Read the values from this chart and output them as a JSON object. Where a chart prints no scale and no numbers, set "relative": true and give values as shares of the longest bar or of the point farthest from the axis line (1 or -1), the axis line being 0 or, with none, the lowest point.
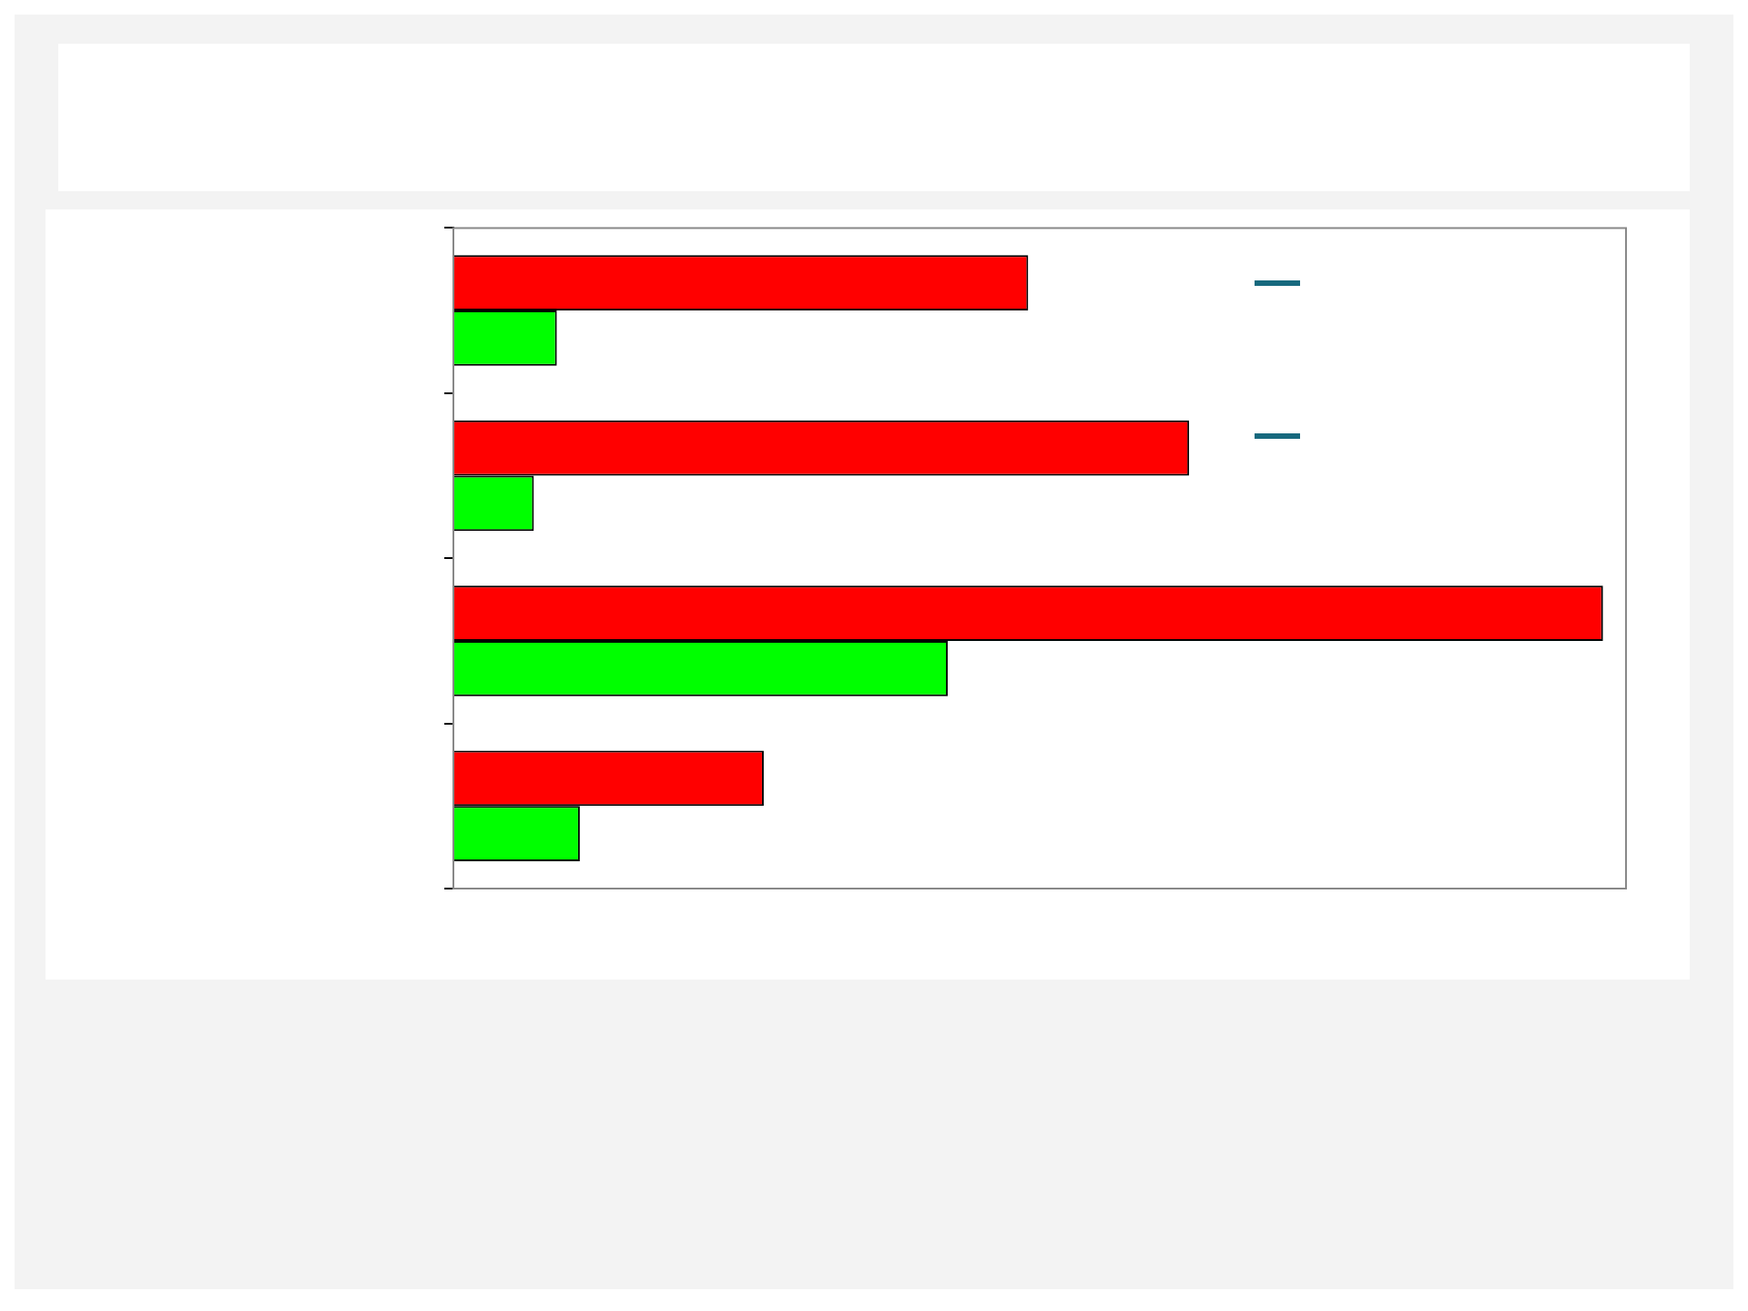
{
  "chart_data": {
    "type": "bar",
    "orientation": "horizontal",
    "relative": true,
    "categories": [
      null,
      null,
      null,
      null
    ],
    "series": [
      {
        "color": "#ff0000",
        "values": [
          0.5,
          0.64,
          1,
          0.27
        ]
      },
      {
        "color": "#00ff00",
        "values": [
          0.09,
          0.07,
          0.43,
          0.11
        ]
      }
    ],
    "legend": false
  }
}
